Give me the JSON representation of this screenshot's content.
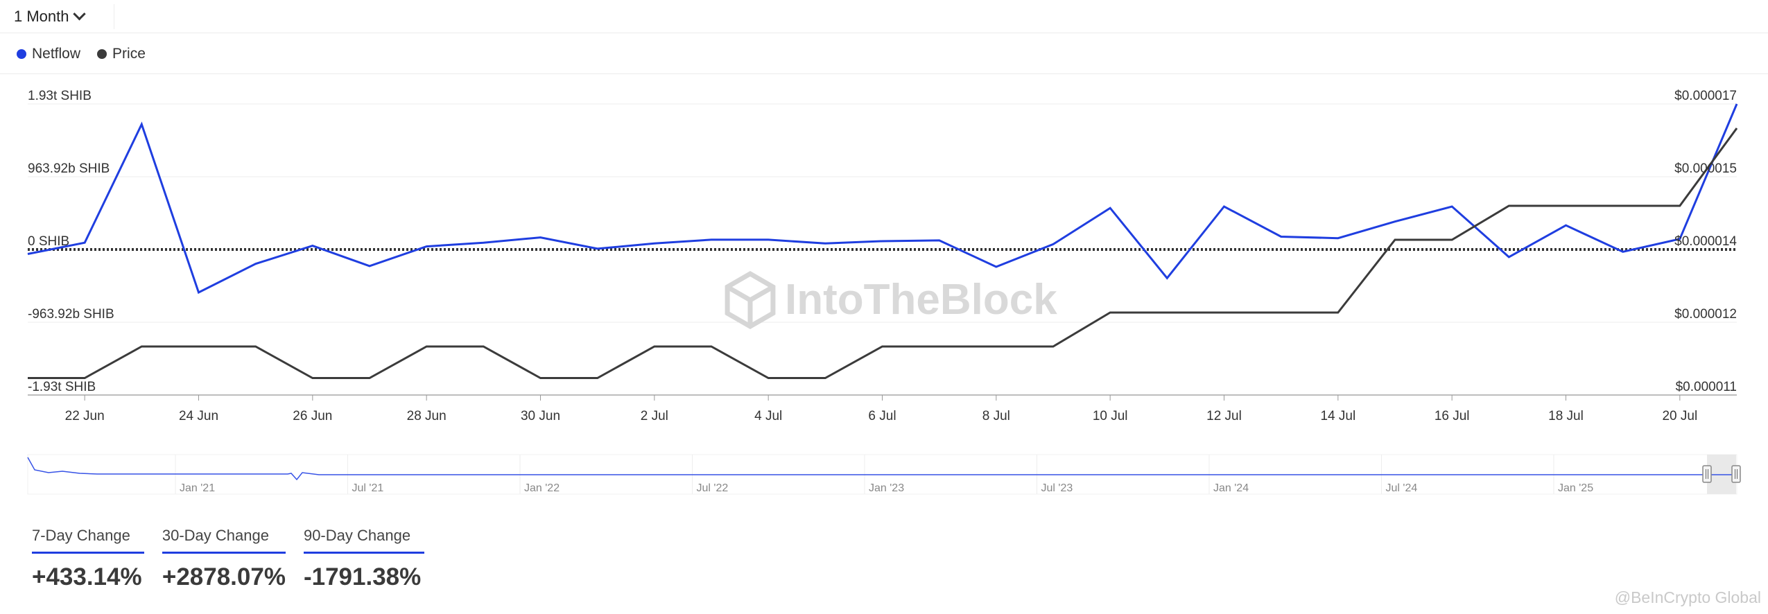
{
  "toolbar": {
    "period_label": "1 Month"
  },
  "legend": [
    {
      "label": "Netflow",
      "color": "#1f3ee0"
    },
    {
      "label": "Price",
      "color": "#3b3b3b"
    }
  ],
  "chart_data": {
    "type": "line",
    "x": [
      "21 Jun",
      "22 Jun",
      "23 Jun",
      "24 Jun",
      "25 Jun",
      "26 Jun",
      "27 Jun",
      "28 Jun",
      "29 Jun",
      "30 Jun",
      "1 Jul",
      "2 Jul",
      "3 Jul",
      "4 Jul",
      "5 Jul",
      "6 Jul",
      "7 Jul",
      "8 Jul",
      "9 Jul",
      "10 Jul",
      "11 Jul",
      "12 Jul",
      "13 Jul",
      "14 Jul",
      "15 Jul",
      "16 Jul",
      "17 Jul",
      "18 Jul",
      "19 Jul",
      "20 Jul",
      "21 Jul"
    ],
    "x_tick_labels": [
      "22 Jun",
      "24 Jun",
      "26 Jun",
      "28 Jun",
      "30 Jun",
      "2 Jul",
      "4 Jul",
      "6 Jul",
      "8 Jul",
      "10 Jul",
      "12 Jul",
      "14 Jul",
      "16 Jul",
      "18 Jul",
      "20 Jul"
    ],
    "series": [
      {
        "name": "Netflow",
        "axis": "left",
        "color": "#1f3ee0",
        "values": [
          -0.06,
          0.09,
          1.66,
          -0.57,
          -0.19,
          0.05,
          -0.22,
          0.04,
          0.09,
          0.16,
          0.01,
          0.08,
          0.13,
          0.13,
          0.08,
          0.11,
          0.12,
          -0.23,
          0.07,
          0.55,
          -0.38,
          0.57,
          0.17,
          0.15,
          0.37,
          0.57,
          -0.1,
          0.32,
          -0.03,
          0.14,
          1.93
        ]
      },
      {
        "name": "Price",
        "axis": "right",
        "color": "#3b3b3b",
        "values": [
          1.135e-05,
          1.135e-05,
          1.2e-05,
          1.2e-05,
          1.2e-05,
          1.135e-05,
          1.135e-05,
          1.2e-05,
          1.2e-05,
          1.135e-05,
          1.135e-05,
          1.2e-05,
          1.2e-05,
          1.135e-05,
          1.135e-05,
          1.2e-05,
          1.2e-05,
          1.2e-05,
          1.2e-05,
          1.27e-05,
          1.27e-05,
          1.27e-05,
          1.27e-05,
          1.27e-05,
          1.42e-05,
          1.42e-05,
          1.49e-05,
          1.49e-05,
          1.49e-05,
          1.49e-05,
          1.65e-05
        ]
      }
    ],
    "left_axis": {
      "unit": "SHIB",
      "ylim": [
        -1.93,
        1.93
      ],
      "tick_labels": [
        "1.93t SHIB",
        "963.92b SHIB",
        "0 SHIB",
        "-963.92b SHIB",
        "-1.93t SHIB"
      ]
    },
    "right_axis": {
      "ylim": [
        1.1e-05,
        1.7e-05
      ],
      "tick_labels": [
        "$0.000017",
        "$0.000015",
        "$0.000014",
        "$0.000012",
        "$0.000011"
      ]
    },
    "grid": true,
    "legend_position": "top-left",
    "watermark": "IntoTheBlock",
    "navigator": {
      "labels": [
        "Jan '21",
        "Jul '21",
        "Jan '22",
        "Jul '22",
        "Jan '23",
        "Jul '23",
        "Jan '24",
        "Jul '24",
        "Jan '25"
      ]
    }
  },
  "stats": [
    {
      "label": "7-Day Change",
      "value": "+433.14%"
    },
    {
      "label": "30-Day Change",
      "value": "+2878.07%"
    },
    {
      "label": "90-Day Change",
      "value": "-1791.38%"
    }
  ],
  "credit": "@BeInCrypto Global"
}
